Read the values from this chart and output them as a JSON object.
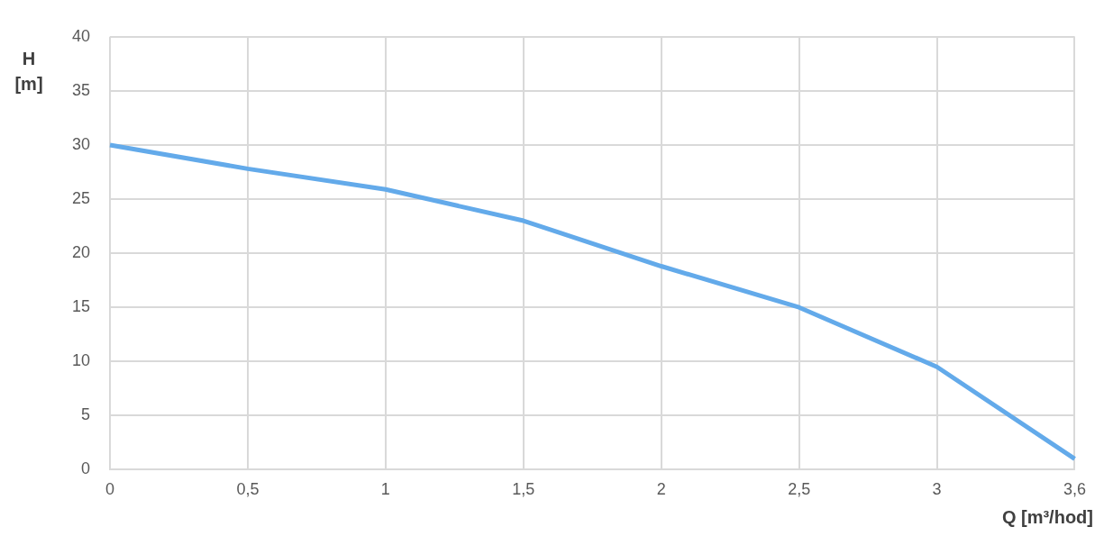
{
  "chart_data": {
    "type": "line",
    "xlabel": "Q [m³/hod]",
    "ylabel": "H [m]",
    "categories": [
      "0",
      "0,5",
      "1",
      "1,5",
      "2",
      "2,5",
      "3",
      "3,6"
    ],
    "series": [
      {
        "color": "#63aaea",
        "values": [
          30,
          27.8,
          25.9,
          23,
          18.8,
          15,
          9.5,
          1
        ]
      }
    ],
    "ylim": [
      0,
      40
    ],
    "yticks": [
      0,
      5,
      10,
      15,
      20,
      25,
      30,
      35,
      40
    ],
    "grid": true,
    "legend": false,
    "marker": "none",
    "line_style": "solid"
  }
}
